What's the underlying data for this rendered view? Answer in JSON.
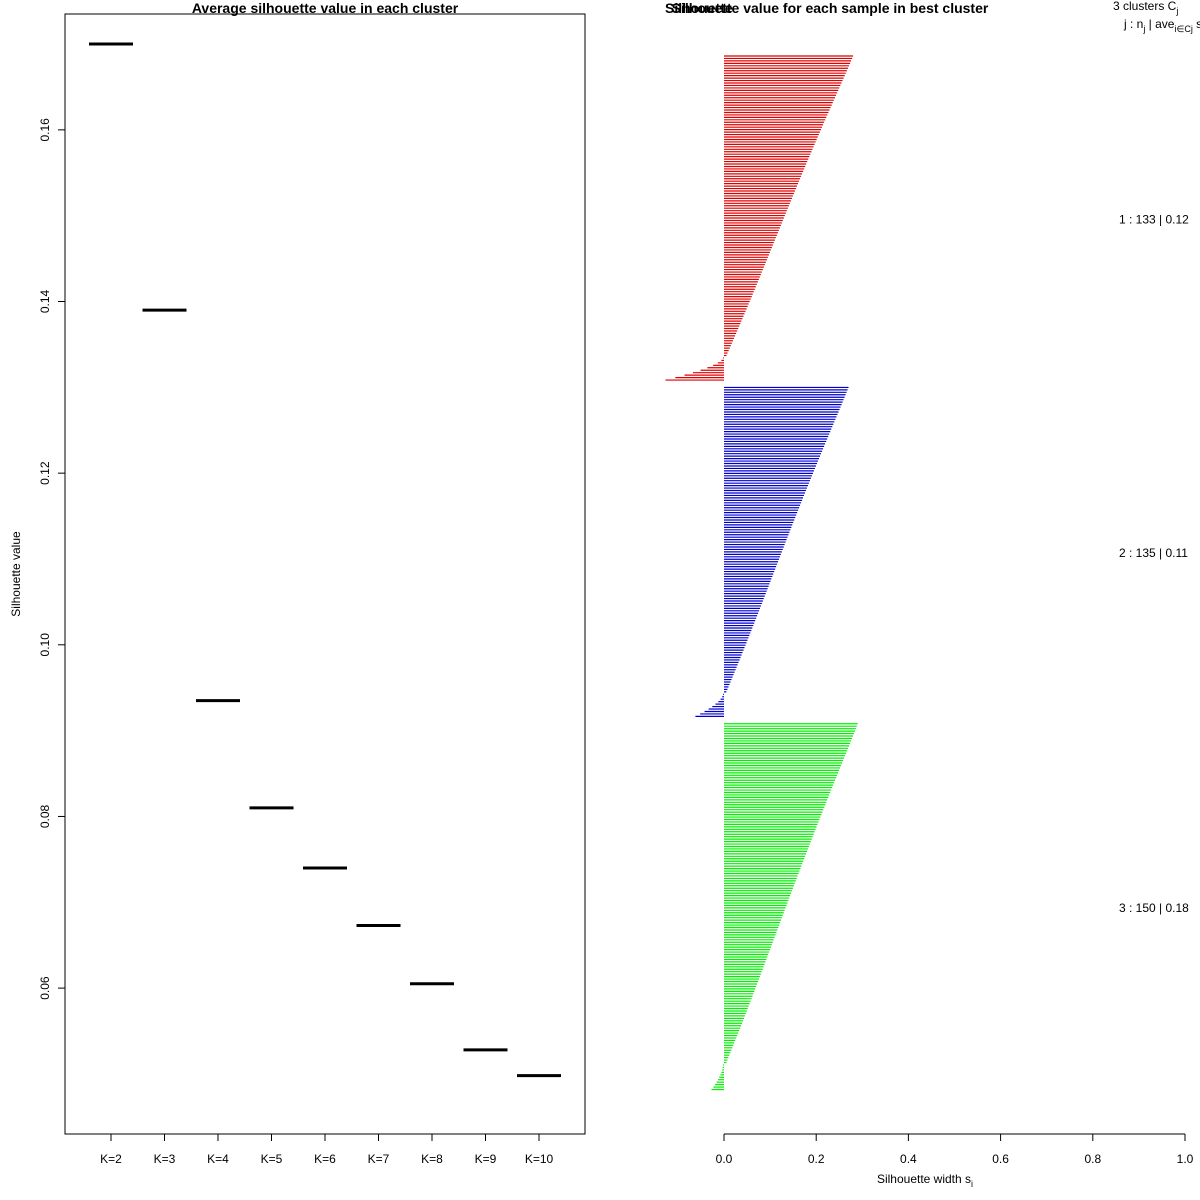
{
  "chart_data": [
    {
      "type": "scatter",
      "title": "Average silhouette value in each cluster",
      "xlabel": "",
      "ylabel": "Silhouette value",
      "categories": [
        "K=2",
        "K=3",
        "K=4",
        "K=5",
        "K=6",
        "K=7",
        "K=8",
        "K=9",
        "K=10"
      ],
      "values": [
        0.17,
        0.139,
        0.0935,
        0.081,
        0.074,
        0.0673,
        0.0605,
        0.0528,
        0.0498
      ],
      "ylim": [
        0.043,
        0.1735
      ],
      "yticks": [
        "0.06",
        "0.08",
        "0.10",
        "0.12",
        "0.14",
        "0.16"
      ],
      "marker": "horizontal-segment",
      "color": "#000000"
    },
    {
      "type": "bar",
      "orientation": "horizontal",
      "title": "Silhouette value for each sample in best cluster",
      "title_overlap": "Silhouette",
      "xlabel": "Silhouette width s",
      "xlabel_sub": "i",
      "xlim": [
        0,
        1.0
      ],
      "xticks": [
        "0.0",
        "0.2",
        "0.4",
        "0.6",
        "0.8",
        "1.0"
      ],
      "header": {
        "line1_main": "3  clusters  C",
        "line1_sub": "j",
        "line2_main": "j :  n",
        "line2_sub1": "j",
        "line2_mid": " | ave",
        "line2_sub2": "i∈Cj",
        "line2_tail": "  s"
      },
      "clusters": [
        {
          "label": "1 :   133  |  0.12",
          "n": 133,
          "avg": 0.12,
          "max": 0.28,
          "min": -0.125,
          "color": "#dd0000"
        },
        {
          "label": "2 :   135  |  0.11",
          "n": 135,
          "avg": 0.11,
          "max": 0.27,
          "min": -0.06,
          "color": "#0000cc"
        },
        {
          "label": "3 :   150  |  0.18",
          "n": 150,
          "avg": 0.18,
          "max": 0.29,
          "min": -0.025,
          "color": "#00ee00"
        }
      ]
    }
  ]
}
